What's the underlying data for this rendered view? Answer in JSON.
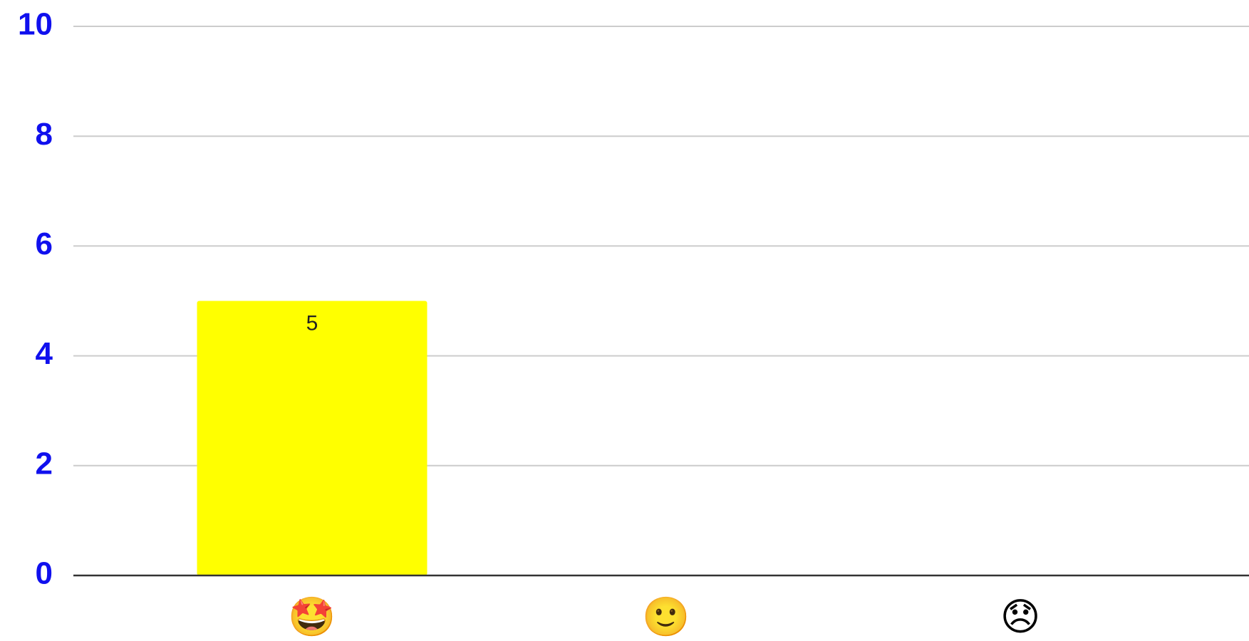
{
  "chart_data": {
    "type": "bar",
    "categories": [
      "🤩",
      "🙂",
      "😞"
    ],
    "values": [
      5,
      0,
      0
    ],
    "color": "#ffff00",
    "ylim": [
      0,
      10
    ],
    "yticks": [
      0,
      2,
      4,
      6,
      8,
      10
    ],
    "grid": true
  }
}
